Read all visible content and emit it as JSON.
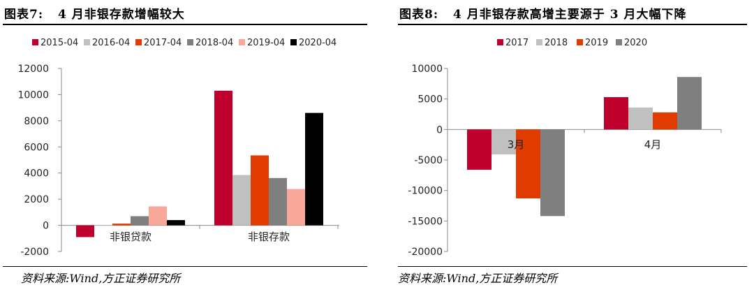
{
  "charts": [
    {
      "figure_label": "图表7:",
      "figure_title": "4 月非银存款增幅较大",
      "source": "资料来源:Wind,方正证券研究所"
    },
    {
      "figure_label": "图表8:",
      "figure_title": "4 月非银存款高增主要源于 3 月大幅下降",
      "source": "资料来源:Wind,方正证券研究所"
    }
  ],
  "chart_data": [
    {
      "type": "bar",
      "title": "4 月非银存款增幅较大",
      "categories": [
        "非银贷款",
        "非银存款"
      ],
      "series": [
        {
          "name": "2015-04",
          "color": "#c0002c",
          "values": [
            -900,
            10300
          ]
        },
        {
          "name": "2016-04",
          "color": "#c0c0c0",
          "values": [
            0,
            3850
          ]
        },
        {
          "name": "2017-04",
          "color": "#e03c00",
          "values": [
            130,
            5350
          ]
        },
        {
          "name": "2018-04",
          "color": "#7f7f7f",
          "values": [
            700,
            3620
          ]
        },
        {
          "name": "2019-04",
          "color": "#f9a799",
          "values": [
            1450,
            2780
          ]
        },
        {
          "name": "2020-04",
          "color": "#000000",
          "values": [
            400,
            8600
          ]
        }
      ],
      "ylim": [
        -2000,
        12000
      ],
      "yticks": [
        -2000,
        0,
        2000,
        4000,
        6000,
        8000,
        10000,
        12000
      ],
      "legend": "top",
      "grid": false
    },
    {
      "type": "bar",
      "title": "4 月非银存款高增主要源于 3 月大幅下降",
      "categories": [
        "3月",
        "4月"
      ],
      "series": [
        {
          "name": "2017",
          "color": "#c0002c",
          "values": [
            -6600,
            5300
          ]
        },
        {
          "name": "2018",
          "color": "#c0c0c0",
          "values": [
            -4100,
            3600
          ]
        },
        {
          "name": "2019",
          "color": "#e03c00",
          "values": [
            -11300,
            2800
          ]
        },
        {
          "name": "2020",
          "color": "#7f7f7f",
          "values": [
            -14200,
            8600
          ]
        }
      ],
      "ylim": [
        -20000,
        10000
      ],
      "yticks": [
        -20000,
        -15000,
        -10000,
        -5000,
        0,
        5000,
        10000
      ],
      "legend": "top",
      "grid": false
    }
  ]
}
